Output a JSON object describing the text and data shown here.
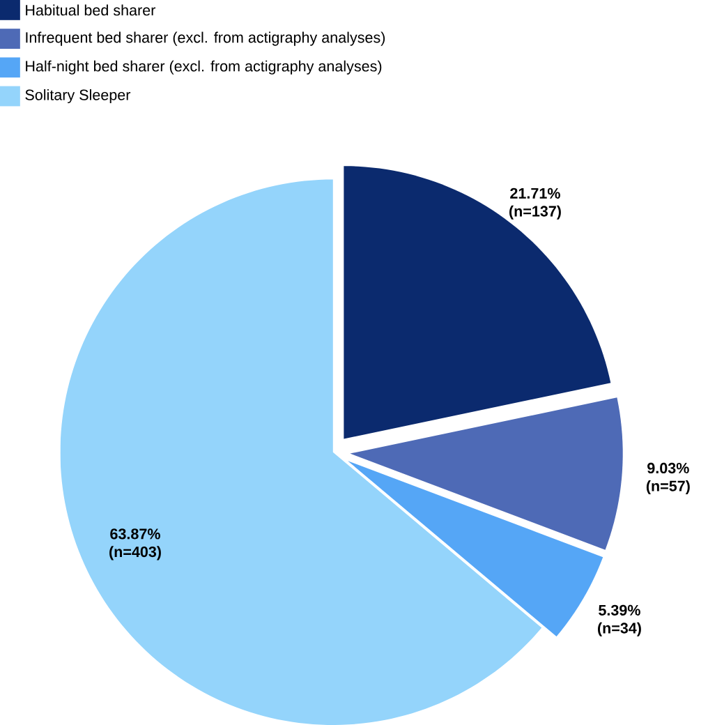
{
  "chart_data": {
    "type": "pie",
    "categories": [
      "Habitual bed sharer",
      "Infrequent bed sharer (excl. from actigraphy analyses)",
      "Half-night bed sharer (excl. from actigraphy analyses)",
      "Solitary Sleeper"
    ],
    "values": [
      21.71,
      9.03,
      5.39,
      63.87
    ],
    "colors": [
      "#0b2a6e",
      "#4e6ab6",
      "#55a6f6",
      "#94d4fb"
    ],
    "value_labels": [
      "21.71% (n=137)",
      "9.03% (n=57)",
      "5.39% (n=34)",
      "63.87% (n=403)"
    ],
    "legend": "top left"
  }
}
